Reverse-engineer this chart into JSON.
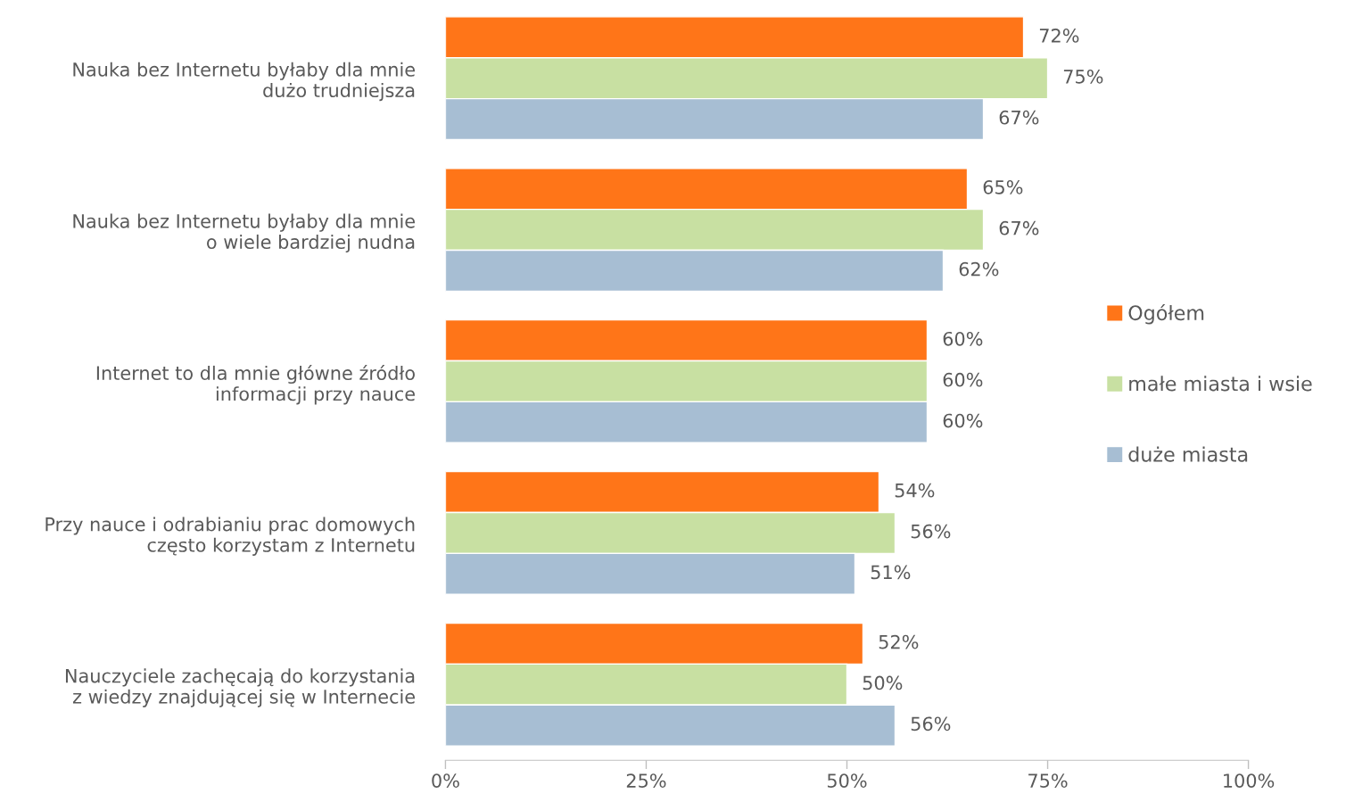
{
  "chart_data": {
    "type": "bar",
    "orientation": "horizontal",
    "categories": [
      "Nauka bez Internetu byłaby dla mnie\ndużo trudniejsza",
      "Nauka bez Internetu byłaby dla mnie\no wiele bardziej nudna",
      "Internet to dla mnie główne źródło\ninformacji przy nauce",
      "Przy nauce i odrabianiu prac domowych\nczęsto korzystam z Internetu",
      "Nauczyciele zachęcają do korzystania\nz wiedzy znajdującej się w Internecie"
    ],
    "series": [
      {
        "name": "Ogółem",
        "color": "#ff7518",
        "values": [
          72,
          65,
          60,
          54,
          52
        ],
        "value_labels": [
          "72%",
          "65%",
          "60%",
          "54%",
          "52%"
        ]
      },
      {
        "name": "małe miasta i wsie",
        "color": "#c8e0a2",
        "values": [
          75,
          67,
          60,
          56,
          50
        ],
        "value_labels": [
          "75%",
          "67%",
          "60%",
          "56%",
          "50%"
        ]
      },
      {
        "name": "duże miasta",
        "color": "#a7bed3",
        "values": [
          67,
          62,
          60,
          51,
          56
        ],
        "value_labels": [
          "67%",
          "62%",
          "60%",
          "51%",
          "56%"
        ]
      }
    ],
    "xlim": [
      0,
      100
    ],
    "xticks": [
      {
        "value": 0,
        "label": "0%"
      },
      {
        "value": 25,
        "label": "25%"
      },
      {
        "value": 50,
        "label": "50%"
      },
      {
        "value": 75,
        "label": "75%"
      },
      {
        "value": 100,
        "label": "100%"
      }
    ],
    "legend": "right",
    "grid": false
  }
}
